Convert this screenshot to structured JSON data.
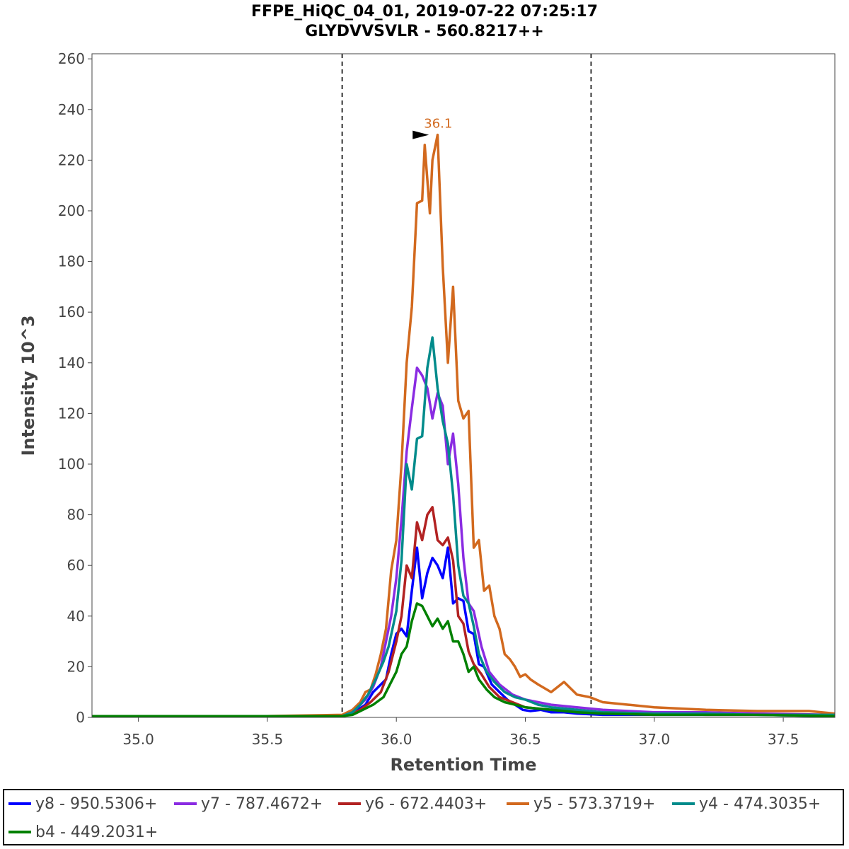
{
  "title_line1": "FFPE_HiQC_04_01, 2019-07-22 07:25:17",
  "title_line2": "GLYDVVSVLR - 560.8217++",
  "chart_data": {
    "type": "line",
    "xlabel": "Retention Time",
    "ylabel": "Intensity 10^3",
    "xlim": [
      34.82,
      37.7
    ],
    "ylim": [
      0,
      262
    ],
    "xticks": [
      35.0,
      35.5,
      36.0,
      36.5,
      37.0,
      37.5
    ],
    "xtick_labels": [
      "35.0",
      "35.5",
      "36.0",
      "36.5",
      "37.0",
      "37.5"
    ],
    "yticks": [
      0,
      20,
      40,
      60,
      80,
      100,
      120,
      140,
      160,
      180,
      200,
      220,
      240,
      260
    ],
    "ytick_labels": [
      "0",
      "20",
      "40",
      "60",
      "80",
      "100",
      "120",
      "140",
      "160",
      "180",
      "200",
      "220",
      "240",
      "260"
    ],
    "integration_boundaries": [
      35.79,
      36.755
    ],
    "peak_annotation": {
      "label": "36.1",
      "x": 36.14,
      "y": 230
    },
    "legend_position": "bottom",
    "series": [
      {
        "name": "y8 - 950.5306+",
        "color": "#0000ff",
        "points": [
          [
            34.82,
            0.5
          ],
          [
            35.5,
            0.5
          ],
          [
            35.79,
            0.5
          ],
          [
            35.82,
            1.5
          ],
          [
            35.85,
            3
          ],
          [
            35.88,
            5
          ],
          [
            35.91,
            10
          ],
          [
            35.94,
            13
          ],
          [
            35.96,
            15
          ],
          [
            35.98,
            25
          ],
          [
            36.0,
            33
          ],
          [
            36.02,
            35
          ],
          [
            36.04,
            32
          ],
          [
            36.06,
            50
          ],
          [
            36.08,
            67
          ],
          [
            36.1,
            47
          ],
          [
            36.12,
            57
          ],
          [
            36.14,
            63
          ],
          [
            36.16,
            60
          ],
          [
            36.18,
            55
          ],
          [
            36.2,
            67
          ],
          [
            36.22,
            45
          ],
          [
            36.24,
            47
          ],
          [
            36.26,
            46
          ],
          [
            36.28,
            34
          ],
          [
            36.3,
            33
          ],
          [
            36.32,
            21
          ],
          [
            36.34,
            20
          ],
          [
            36.37,
            13
          ],
          [
            36.4,
            10
          ],
          [
            36.43,
            7
          ],
          [
            36.46,
            5
          ],
          [
            36.49,
            3
          ],
          [
            36.52,
            2.5
          ],
          [
            36.56,
            3
          ],
          [
            36.6,
            2
          ],
          [
            36.65,
            2
          ],
          [
            36.7,
            1.5
          ],
          [
            36.8,
            1
          ],
          [
            37.0,
            1
          ],
          [
            37.2,
            1
          ],
          [
            37.4,
            1
          ],
          [
            37.7,
            0.5
          ]
        ]
      },
      {
        "name": "y7 - 787.4672+",
        "color": "#8a2be2",
        "points": [
          [
            34.82,
            0.5
          ],
          [
            35.5,
            0.5
          ],
          [
            35.79,
            0.5
          ],
          [
            35.82,
            1.5
          ],
          [
            35.85,
            4
          ],
          [
            35.88,
            7
          ],
          [
            35.91,
            12
          ],
          [
            35.94,
            20
          ],
          [
            35.96,
            30
          ],
          [
            35.98,
            40
          ],
          [
            36.0,
            55
          ],
          [
            36.02,
            78
          ],
          [
            36.04,
            105
          ],
          [
            36.06,
            122
          ],
          [
            36.08,
            138
          ],
          [
            36.1,
            135
          ],
          [
            36.12,
            130
          ],
          [
            36.14,
            118
          ],
          [
            36.16,
            128
          ],
          [
            36.18,
            123
          ],
          [
            36.2,
            100
          ],
          [
            36.22,
            112
          ],
          [
            36.24,
            92
          ],
          [
            36.26,
            63
          ],
          [
            36.28,
            45
          ],
          [
            36.3,
            42
          ],
          [
            36.33,
            28
          ],
          [
            36.36,
            18
          ],
          [
            36.4,
            13
          ],
          [
            36.45,
            9
          ],
          [
            36.5,
            7
          ],
          [
            36.55,
            6
          ],
          [
            36.6,
            5
          ],
          [
            36.7,
            4
          ],
          [
            36.8,
            3
          ],
          [
            36.9,
            2.5
          ],
          [
            37.0,
            2
          ],
          [
            37.2,
            2
          ],
          [
            37.4,
            1.5
          ],
          [
            37.7,
            1
          ]
        ]
      },
      {
        "name": "y6 - 672.4403+",
        "color": "#b22222",
        "points": [
          [
            34.82,
            0.5
          ],
          [
            35.5,
            0.5
          ],
          [
            35.79,
            0.5
          ],
          [
            35.82,
            1
          ],
          [
            35.86,
            3
          ],
          [
            35.9,
            6
          ],
          [
            35.94,
            10
          ],
          [
            35.97,
            18
          ],
          [
            36.0,
            30
          ],
          [
            36.02,
            40
          ],
          [
            36.04,
            60
          ],
          [
            36.06,
            55
          ],
          [
            36.08,
            77
          ],
          [
            36.1,
            70
          ],
          [
            36.12,
            80
          ],
          [
            36.14,
            83
          ],
          [
            36.16,
            70
          ],
          [
            36.18,
            68
          ],
          [
            36.2,
            71
          ],
          [
            36.22,
            62
          ],
          [
            36.24,
            40
          ],
          [
            36.26,
            37
          ],
          [
            36.28,
            26
          ],
          [
            36.3,
            21
          ],
          [
            36.33,
            17
          ],
          [
            36.36,
            12
          ],
          [
            36.4,
            8
          ],
          [
            36.45,
            6
          ],
          [
            36.5,
            4
          ],
          [
            36.6,
            3
          ],
          [
            36.7,
            2.5
          ],
          [
            36.8,
            2
          ],
          [
            37.0,
            1.5
          ],
          [
            37.2,
            1
          ],
          [
            37.7,
            1
          ]
        ]
      },
      {
        "name": "y5 - 573.3719+",
        "color": "#d2691e",
        "points": [
          [
            34.82,
            0.5
          ],
          [
            35.5,
            0.5
          ],
          [
            35.79,
            1
          ],
          [
            35.83,
            3
          ],
          [
            35.86,
            6
          ],
          [
            35.88,
            10
          ],
          [
            35.9,
            11
          ],
          [
            35.92,
            17
          ],
          [
            35.94,
            25
          ],
          [
            35.96,
            35
          ],
          [
            35.98,
            58
          ],
          [
            36.0,
            70
          ],
          [
            36.02,
            100
          ],
          [
            36.04,
            140
          ],
          [
            36.06,
            162
          ],
          [
            36.08,
            203
          ],
          [
            36.1,
            204
          ],
          [
            36.11,
            226
          ],
          [
            36.13,
            199
          ],
          [
            36.14,
            220
          ],
          [
            36.16,
            230
          ],
          [
            36.18,
            178
          ],
          [
            36.2,
            140
          ],
          [
            36.22,
            170
          ],
          [
            36.24,
            125
          ],
          [
            36.26,
            118
          ],
          [
            36.28,
            121
          ],
          [
            36.3,
            67
          ],
          [
            36.32,
            70
          ],
          [
            36.34,
            50
          ],
          [
            36.36,
            52
          ],
          [
            36.38,
            40
          ],
          [
            36.4,
            35
          ],
          [
            36.42,
            25
          ],
          [
            36.44,
            23
          ],
          [
            36.46,
            20
          ],
          [
            36.48,
            16
          ],
          [
            36.5,
            17
          ],
          [
            36.52,
            15
          ],
          [
            36.55,
            13
          ],
          [
            36.6,
            10
          ],
          [
            36.65,
            14
          ],
          [
            36.7,
            9
          ],
          [
            36.75,
            8
          ],
          [
            36.8,
            6
          ],
          [
            36.9,
            5
          ],
          [
            37.0,
            4
          ],
          [
            37.2,
            3
          ],
          [
            37.4,
            2.5
          ],
          [
            37.6,
            2.5
          ],
          [
            37.7,
            1.5
          ]
        ]
      },
      {
        "name": "y4 - 474.3035+",
        "color": "#008b8b",
        "points": [
          [
            34.82,
            0.5
          ],
          [
            35.5,
            0.5
          ],
          [
            35.79,
            0.5
          ],
          [
            35.83,
            2
          ],
          [
            35.86,
            5
          ],
          [
            35.89,
            9
          ],
          [
            35.92,
            15
          ],
          [
            35.95,
            22
          ],
          [
            35.97,
            28
          ],
          [
            36.0,
            42
          ],
          [
            36.02,
            62
          ],
          [
            36.04,
            100
          ],
          [
            36.06,
            90
          ],
          [
            36.08,
            110
          ],
          [
            36.1,
            111
          ],
          [
            36.12,
            138
          ],
          [
            36.14,
            150
          ],
          [
            36.16,
            130
          ],
          [
            36.18,
            117
          ],
          [
            36.2,
            108
          ],
          [
            36.22,
            88
          ],
          [
            36.24,
            60
          ],
          [
            36.26,
            48
          ],
          [
            36.28,
            45
          ],
          [
            36.3,
            36
          ],
          [
            36.32,
            25
          ],
          [
            36.35,
            18
          ],
          [
            36.38,
            14
          ],
          [
            36.42,
            10
          ],
          [
            36.46,
            8
          ],
          [
            36.5,
            7
          ],
          [
            36.55,
            5
          ],
          [
            36.6,
            4
          ],
          [
            36.7,
            3
          ],
          [
            36.8,
            2
          ],
          [
            37.0,
            1.5
          ],
          [
            37.2,
            1.5
          ],
          [
            37.4,
            1
          ],
          [
            37.7,
            1
          ]
        ]
      },
      {
        "name": "b4 - 449.2031+",
        "color": "#008000",
        "points": [
          [
            34.82,
            0.5
          ],
          [
            35.5,
            0.5
          ],
          [
            35.79,
            0.5
          ],
          [
            35.83,
            1
          ],
          [
            35.87,
            3
          ],
          [
            35.91,
            5
          ],
          [
            35.95,
            8
          ],
          [
            35.98,
            14
          ],
          [
            36.0,
            18
          ],
          [
            36.02,
            25
          ],
          [
            36.04,
            28
          ],
          [
            36.06,
            38
          ],
          [
            36.08,
            45
          ],
          [
            36.1,
            44
          ],
          [
            36.12,
            40
          ],
          [
            36.14,
            36
          ],
          [
            36.16,
            39
          ],
          [
            36.18,
            35
          ],
          [
            36.2,
            38
          ],
          [
            36.22,
            30
          ],
          [
            36.24,
            30
          ],
          [
            36.26,
            25
          ],
          [
            36.28,
            18
          ],
          [
            36.3,
            20
          ],
          [
            36.32,
            15
          ],
          [
            36.35,
            11
          ],
          [
            36.38,
            8
          ],
          [
            36.42,
            6
          ],
          [
            36.46,
            5
          ],
          [
            36.5,
            4
          ],
          [
            36.6,
            3
          ],
          [
            36.7,
            2
          ],
          [
            36.8,
            1.5
          ],
          [
            37.0,
            1
          ],
          [
            37.4,
            1
          ],
          [
            37.7,
            0.5
          ]
        ]
      }
    ]
  }
}
